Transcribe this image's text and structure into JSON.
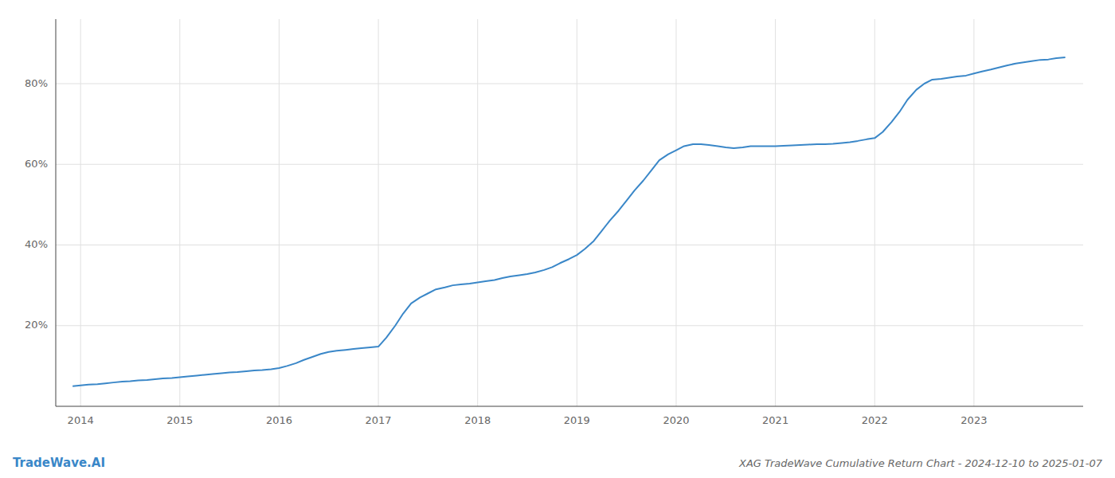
{
  "chart_data": {
    "type": "line",
    "title": "XAG TradeWave Cumulative Return Chart - 2024-12-10 to 2025-01-07",
    "annotations": [
      "TradeWave.AI"
    ],
    "color": "#3a87c8",
    "grid": true,
    "xlim": [
      2013.75,
      2024.1
    ],
    "xticks": [
      2014,
      2015,
      2016,
      2017,
      2018,
      2019,
      2020,
      2021,
      2022,
      2023
    ],
    "ylim": [
      0,
      96
    ],
    "yticks": [
      {
        "value": 20,
        "label": "20%"
      },
      {
        "value": 40,
        "label": "40%"
      },
      {
        "value": 60,
        "label": "60%"
      },
      {
        "value": 80,
        "label": "80%"
      }
    ],
    "x": [
      2013.92,
      2014.0,
      2014.08,
      2014.17,
      2014.25,
      2014.33,
      2014.42,
      2014.5,
      2014.58,
      2014.67,
      2014.75,
      2014.83,
      2014.92,
      2015.0,
      2015.08,
      2015.17,
      2015.25,
      2015.33,
      2015.42,
      2015.5,
      2015.58,
      2015.67,
      2015.75,
      2015.83,
      2015.92,
      2016.0,
      2016.08,
      2016.17,
      2016.25,
      2016.33,
      2016.42,
      2016.5,
      2016.58,
      2016.67,
      2016.75,
      2016.83,
      2016.92,
      2017.0,
      2017.08,
      2017.17,
      2017.25,
      2017.33,
      2017.42,
      2017.5,
      2017.58,
      2017.67,
      2017.75,
      2017.83,
      2017.92,
      2018.0,
      2018.08,
      2018.17,
      2018.25,
      2018.33,
      2018.42,
      2018.5,
      2018.58,
      2018.67,
      2018.75,
      2018.83,
      2018.92,
      2019.0,
      2019.08,
      2019.17,
      2019.25,
      2019.33,
      2019.42,
      2019.5,
      2019.58,
      2019.67,
      2019.75,
      2019.83,
      2019.92,
      2020.0,
      2020.08,
      2020.17,
      2020.25,
      2020.33,
      2020.42,
      2020.5,
      2020.58,
      2020.67,
      2020.75,
      2020.83,
      2020.92,
      2021.0,
      2021.08,
      2021.17,
      2021.25,
      2021.33,
      2021.42,
      2021.5,
      2021.58,
      2021.67,
      2021.75,
      2021.83,
      2021.92,
      2022.0,
      2022.08,
      2022.17,
      2022.25,
      2022.33,
      2022.42,
      2022.5,
      2022.58,
      2022.67,
      2022.75,
      2022.83,
      2022.92,
      2023.0,
      2023.08,
      2023.17,
      2023.25,
      2023.33,
      2023.42,
      2023.5,
      2023.58,
      2023.67,
      2023.75,
      2023.83,
      2023.92
    ],
    "values": [
      5.0,
      5.2,
      5.4,
      5.5,
      5.7,
      5.9,
      6.1,
      6.2,
      6.4,
      6.5,
      6.7,
      6.9,
      7.0,
      7.2,
      7.4,
      7.6,
      7.8,
      8.0,
      8.2,
      8.4,
      8.5,
      8.7,
      8.9,
      9.0,
      9.2,
      9.5,
      10.0,
      10.7,
      11.5,
      12.2,
      13.0,
      13.5,
      13.8,
      14.0,
      14.2,
      14.4,
      14.6,
      14.8,
      17.0,
      20.0,
      23.0,
      25.5,
      27.0,
      28.0,
      29.0,
      29.5,
      30.0,
      30.2,
      30.4,
      30.7,
      31.0,
      31.3,
      31.8,
      32.2,
      32.5,
      32.8,
      33.2,
      33.8,
      34.5,
      35.5,
      36.5,
      37.5,
      39.0,
      41.0,
      43.5,
      46.0,
      48.5,
      51.0,
      53.5,
      56.0,
      58.5,
      61.0,
      62.5,
      63.5,
      64.5,
      65.0,
      65.0,
      64.8,
      64.5,
      64.2,
      64.0,
      64.2,
      64.5,
      64.5,
      64.5,
      64.5,
      64.6,
      64.7,
      64.8,
      64.9,
      65.0,
      65.0,
      65.1,
      65.3,
      65.5,
      65.8,
      66.2,
      66.5,
      68.0,
      70.5,
      73.0,
      76.0,
      78.5,
      80.0,
      81.0,
      81.2,
      81.5,
      81.8,
      82.0,
      82.5,
      83.0,
      83.5,
      84.0,
      84.5,
      85.0,
      85.3,
      85.6,
      85.9,
      86.0,
      86.3,
      86.5
    ]
  }
}
